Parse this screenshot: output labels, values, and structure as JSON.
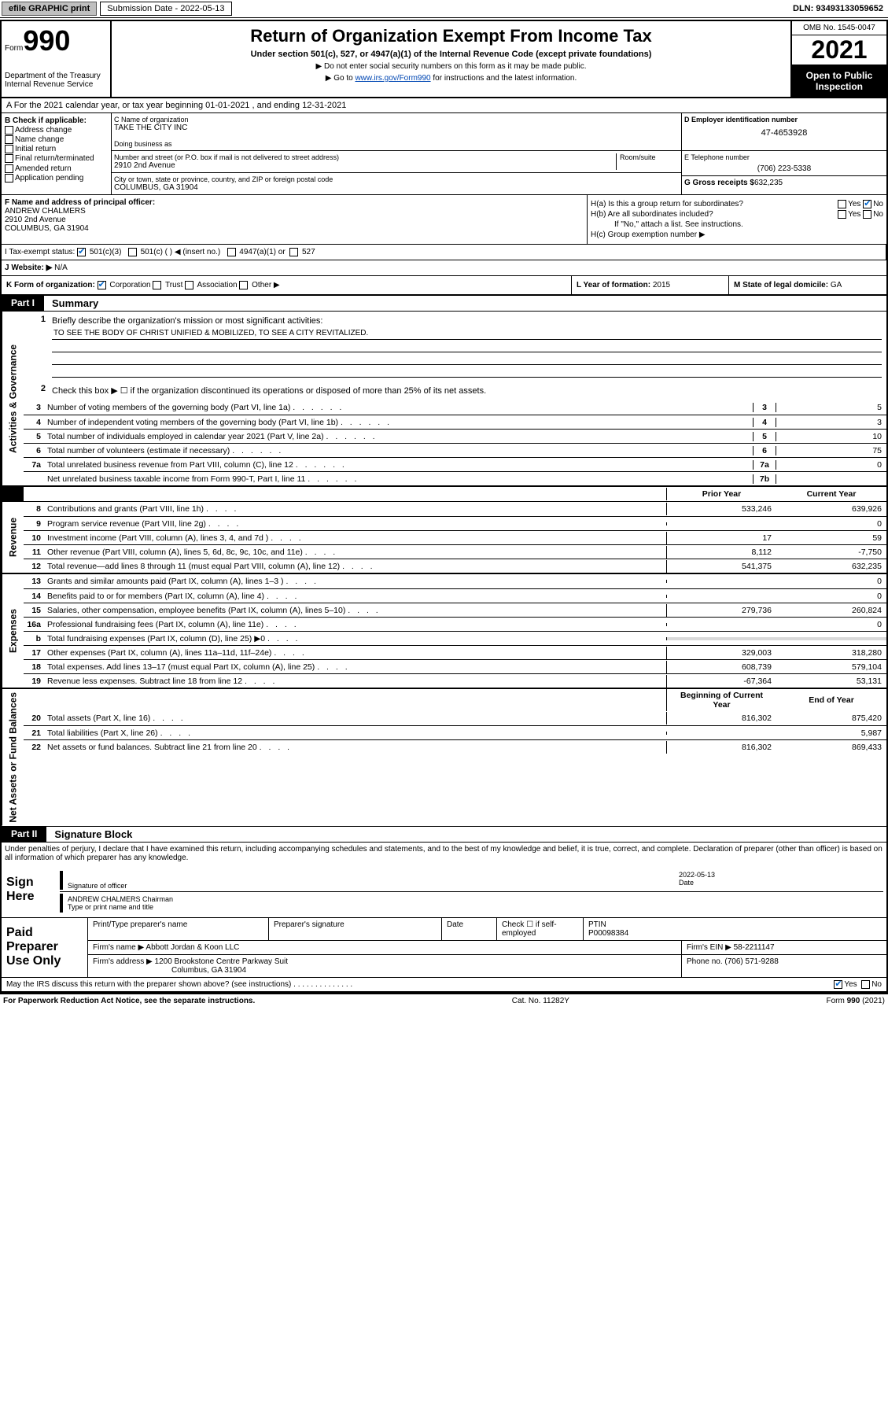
{
  "topbar": {
    "efile": "efile GRAPHIC print",
    "subdate_label": "Submission Date - 2022-05-13",
    "dln": "DLN: 93493133059652"
  },
  "header": {
    "form_word": "Form",
    "form_no": "990",
    "title": "Return of Organization Exempt From Income Tax",
    "sub1": "Under section 501(c), 527, or 4947(a)(1) of the Internal Revenue Code (except private foundations)",
    "sub2": "▶ Do not enter social security numbers on this form as it may be made public.",
    "sub3_pre": "▶ Go to ",
    "sub3_link": "www.irs.gov/Form990",
    "sub3_post": " for instructions and the latest information.",
    "dept": "Department of the Treasury\nInternal Revenue Service",
    "omb": "OMB No. 1545-0047",
    "year": "2021",
    "inspect": "Open to Public Inspection"
  },
  "rowA": "A For the 2021 calendar year, or tax year beginning 01-01-2021    , and ending 12-31-2021",
  "colB": {
    "label": "B Check if applicable:",
    "items": [
      "Address change",
      "Name change",
      "Initial return",
      "Final return/terminated",
      "Amended return",
      "Application pending"
    ]
  },
  "nameBlock": {
    "c_label": "C Name of organization",
    "c_val": "TAKE THE CITY INC",
    "dba_label": "Doing business as",
    "addr_label": "Number and street (or P.O. box if mail is not delivered to street address)",
    "room_label": "Room/suite",
    "addr": "2910 2nd Avenue",
    "city_label": "City or town, state or province, country, and ZIP or foreign postal code",
    "city": "COLUMBUS, GA  31904"
  },
  "colD": {
    "ein_label": "D Employer identification number",
    "ein": "47-4653928",
    "phone_label": "E Telephone number",
    "phone": "(706) 223-5338",
    "gross_label": "G Gross receipts $",
    "gross": "632,235"
  },
  "secF": {
    "label": "F Name and address of principal officer:",
    "name": "ANDREW CHALMERS",
    "addr1": "2910 2nd Avenue",
    "addr2": "COLUMBUS, GA  31904"
  },
  "secH": {
    "ha": "H(a)  Is this a group return for subordinates?",
    "hb": "H(b)  Are all subordinates included?",
    "hb_note": "If \"No,\" attach a list. See instructions.",
    "hc": "H(c)  Group exemption number ▶",
    "yes": "Yes",
    "no": "No"
  },
  "secI": {
    "label": "I   Tax-exempt status:",
    "opts": [
      "501(c)(3)",
      "501(c) (  ) ◀ (insert no.)",
      "4947(a)(1) or",
      "527"
    ]
  },
  "secJ": {
    "label": "J   Website: ▶",
    "val": "N/A"
  },
  "secK": {
    "label": "K Form of organization:",
    "opts": [
      "Corporation",
      "Trust",
      "Association",
      "Other ▶"
    ]
  },
  "secL": {
    "label": "L Year of formation:",
    "val": "2015"
  },
  "secM": {
    "label": "M State of legal domicile:",
    "val": "GA"
  },
  "part1": {
    "tag": "Part I",
    "title": "Summary"
  },
  "summary": {
    "q1": "Briefly describe the organization's mission or most significant activities:",
    "mission": "TO SEE THE BODY OF CHRIST UNIFIED & MOBILIZED, TO SEE A CITY REVITALIZED.",
    "q2": "Check this box ▶ ☐  if the organization discontinued its operations or disposed of more than 25% of its net assets.",
    "lines": [
      {
        "n": "3",
        "t": "Number of voting members of the governing body (Part VI, line 1a)",
        "box": "3",
        "v": "5"
      },
      {
        "n": "4",
        "t": "Number of independent voting members of the governing body (Part VI, line 1b)",
        "box": "4",
        "v": "3"
      },
      {
        "n": "5",
        "t": "Total number of individuals employed in calendar year 2021 (Part V, line 2a)",
        "box": "5",
        "v": "10"
      },
      {
        "n": "6",
        "t": "Total number of volunteers (estimate if necessary)",
        "box": "6",
        "v": "75"
      },
      {
        "n": "7a",
        "t": "Total unrelated business revenue from Part VIII, column (C), line 12",
        "box": "7a",
        "v": "0"
      },
      {
        "n": "",
        "t": "Net unrelated business taxable income from Form 990-T, Part I, line 11",
        "box": "7b",
        "v": ""
      }
    ],
    "col_prior": "Prior Year",
    "col_curr": "Current Year"
  },
  "revenue": [
    {
      "n": "8",
      "t": "Contributions and grants (Part VIII, line 1h)",
      "p": "533,246",
      "c": "639,926"
    },
    {
      "n": "9",
      "t": "Program service revenue (Part VIII, line 2g)",
      "p": "",
      "c": "0"
    },
    {
      "n": "10",
      "t": "Investment income (Part VIII, column (A), lines 3, 4, and 7d )",
      "p": "17",
      "c": "59"
    },
    {
      "n": "11",
      "t": "Other revenue (Part VIII, column (A), lines 5, 6d, 8c, 9c, 10c, and 11e)",
      "p": "8,112",
      "c": "-7,750"
    },
    {
      "n": "12",
      "t": "Total revenue—add lines 8 through 11 (must equal Part VIII, column (A), line 12)",
      "p": "541,375",
      "c": "632,235"
    }
  ],
  "expenses": [
    {
      "n": "13",
      "t": "Grants and similar amounts paid (Part IX, column (A), lines 1–3 )",
      "p": "",
      "c": "0"
    },
    {
      "n": "14",
      "t": "Benefits paid to or for members (Part IX, column (A), line 4)",
      "p": "",
      "c": "0"
    },
    {
      "n": "15",
      "t": "Salaries, other compensation, employee benefits (Part IX, column (A), lines 5–10)",
      "p": "279,736",
      "c": "260,824"
    },
    {
      "n": "16a",
      "t": "Professional fundraising fees (Part IX, column (A), line 11e)",
      "p": "",
      "c": "0"
    },
    {
      "n": "b",
      "t": "Total fundraising expenses (Part IX, column (D), line 25) ▶0",
      "p": "shade",
      "c": "shade"
    },
    {
      "n": "17",
      "t": "Other expenses (Part IX, column (A), lines 11a–11d, 11f–24e)",
      "p": "329,003",
      "c": "318,280"
    },
    {
      "n": "18",
      "t": "Total expenses. Add lines 13–17 (must equal Part IX, column (A), line 25)",
      "p": "608,739",
      "c": "579,104"
    },
    {
      "n": "19",
      "t": "Revenue less expenses. Subtract line 18 from line 12",
      "p": "-67,364",
      "c": "53,131"
    }
  ],
  "netassets_hdr": {
    "p": "Beginning of Current Year",
    "c": "End of Year"
  },
  "netassets": [
    {
      "n": "20",
      "t": "Total assets (Part X, line 16)",
      "p": "816,302",
      "c": "875,420"
    },
    {
      "n": "21",
      "t": "Total liabilities (Part X, line 26)",
      "p": "",
      "c": "5,987"
    },
    {
      "n": "22",
      "t": "Net assets or fund balances. Subtract line 21 from line 20",
      "p": "816,302",
      "c": "869,433"
    }
  ],
  "tabs": {
    "ag": "Activities & Governance",
    "rev": "Revenue",
    "exp": "Expenses",
    "na": "Net Assets or Fund Balances"
  },
  "part2": {
    "tag": "Part II",
    "title": "Signature Block"
  },
  "decl": "Under penalties of perjury, I declare that I have examined this return, including accompanying schedules and statements, and to the best of my knowledge and belief, it is true, correct, and complete. Declaration of preparer (other than officer) is based on all information of which preparer has any knowledge.",
  "sign": {
    "label": "Sign Here",
    "sig_label": "Signature of officer",
    "date": "2022-05-13",
    "date_label": "Date",
    "name": "ANDREW CHALMERS Chairman",
    "name_label": "Type or print name and title"
  },
  "prep": {
    "label": "Paid Preparer Use Only",
    "h1": "Print/Type preparer's name",
    "h2": "Preparer's signature",
    "h3": "Date",
    "h4": "Check ☐ if self-employed",
    "h5_label": "PTIN",
    "h5": "P00098384",
    "firm_label": "Firm's name    ▶",
    "firm": "Abbott Jordan & Koon LLC",
    "ein_label": "Firm's EIN ▶",
    "ein": "58-2211147",
    "addr_label": "Firm's address ▶",
    "addr": "1200 Brookstone Centre Parkway Suit",
    "addr2": "Columbus, GA  31904",
    "phone_label": "Phone no.",
    "phone": "(706) 571-9288"
  },
  "may": {
    "q": "May the IRS discuss this return with the preparer shown above? (see instructions)",
    "yes": "Yes",
    "no": "No"
  },
  "footer": {
    "l": "For Paperwork Reduction Act Notice, see the separate instructions.",
    "c": "Cat. No. 11282Y",
    "r": "Form 990 (2021)"
  },
  "colors": {
    "link": "#0047b3",
    "check": "#0066cc",
    "btn_bg": "#bfbfbf"
  }
}
